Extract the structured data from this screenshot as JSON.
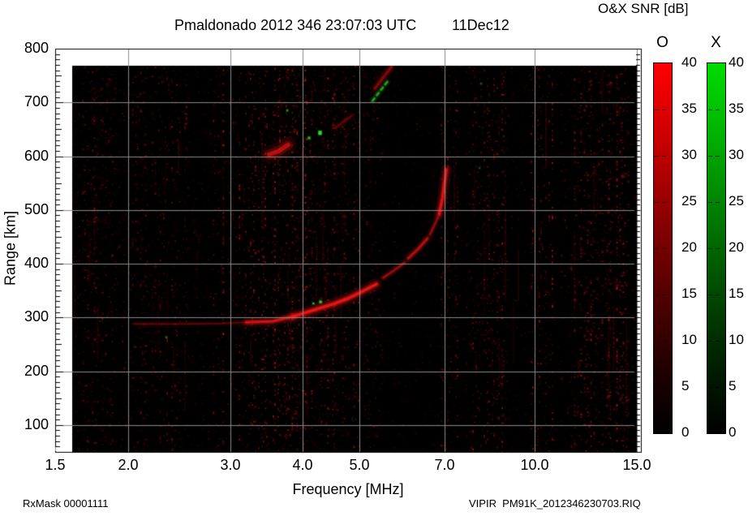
{
  "header": {
    "title": "Pmaldonado 2012 346 23:07:03 UTC",
    "date": "11Dec12"
  },
  "colorbar_panel": {
    "title": "O&X SNR [dB]",
    "bars": [
      {
        "label": "O",
        "min": 0,
        "max": 40,
        "tick_step": 5,
        "top_color": "#fe0000"
      },
      {
        "label": "X",
        "min": 0,
        "max": 40,
        "tick_step": 5,
        "top_color": "#00dc00"
      }
    ],
    "tick_labels": [
      "40",
      "35",
      "30",
      "25",
      "20",
      "15",
      "10",
      "5",
      "0"
    ]
  },
  "footer": {
    "left": "RxMask 00001111",
    "right": "VIPIR  PM91K_2012346230703.RIQ"
  },
  "chart_data": {
    "type": "heatmap",
    "title": "Pmaldonado 2012 346 23:07:03 UTC  11Dec12",
    "xlabel": "Frequency [MHz]",
    "ylabel": "Range [km]",
    "x_scale": "log",
    "xlim": [
      1.5,
      15.0
    ],
    "ylim": [
      50,
      800
    ],
    "x_ticks": [
      1.5,
      2.0,
      3.0,
      4.0,
      5.0,
      7.0,
      10.0,
      15.0
    ],
    "x_tick_labels": [
      "1.5",
      "2.0",
      "3.0",
      "4.0",
      "5.0",
      "7.0",
      "10.0",
      "15.0"
    ],
    "x_gridlines": [
      2,
      3,
      4,
      5,
      7,
      10,
      15
    ],
    "y_ticks": [
      100,
      200,
      300,
      400,
      500,
      600,
      700,
      800
    ],
    "y_gridlines": [
      100,
      200,
      300,
      400,
      500,
      600,
      700
    ],
    "y_minor_step_km": 10,
    "grid_color": "#8a8a8a",
    "background_color": "#000000",
    "noise_color": "#e11612",
    "snr_range_db": [
      0,
      40
    ],
    "data_extent": {
      "f_min_mhz": 1.6,
      "f_max_mhz": 15.0,
      "km_min": 50,
      "km_max": 768
    },
    "o_trace_segments": [
      {
        "alpha": 0.3,
        "width": 3.0,
        "points_f_km": [
          [
            2.05,
            288
          ],
          [
            2.5,
            288
          ],
          [
            2.9,
            289
          ],
          [
            3.2,
            291
          ]
        ]
      },
      {
        "alpha": 0.85,
        "width": 5.0,
        "points_f_km": [
          [
            3.2,
            291
          ],
          [
            3.55,
            293
          ],
          [
            3.85,
            302
          ]
        ]
      },
      {
        "alpha": 1.0,
        "width": 6.0,
        "points_f_km": [
          [
            3.85,
            302
          ],
          [
            4.15,
            313
          ],
          [
            4.45,
            323
          ],
          [
            4.75,
            334
          ],
          [
            5.05,
            348
          ],
          [
            5.35,
            362
          ]
        ]
      },
      {
        "alpha": 0.55,
        "width": 4.0,
        "points_f_km": [
          [
            5.5,
            374
          ],
          [
            5.75,
            388
          ],
          [
            5.98,
            402
          ]
        ]
      },
      {
        "alpha": 0.7,
        "width": 4.5,
        "points_f_km": [
          [
            6.07,
            410
          ],
          [
            6.32,
            428
          ],
          [
            6.55,
            447
          ]
        ]
      },
      {
        "alpha": 0.5,
        "width": 4.0,
        "points_f_km": [
          [
            6.62,
            455
          ],
          [
            6.82,
            485
          ]
        ]
      },
      {
        "alpha": 0.95,
        "width": 5.5,
        "points_f_km": [
          [
            6.86,
            492
          ],
          [
            6.95,
            522
          ],
          [
            7.02,
            556
          ],
          [
            7.06,
            575
          ]
        ]
      }
    ],
    "echo_streaks": [
      {
        "alpha": 0.7,
        "width": 9.0,
        "points_f_km": [
          [
            3.5,
            603
          ],
          [
            3.64,
            610
          ],
          [
            3.77,
            621
          ]
        ]
      },
      {
        "alpha": 0.3,
        "width": 4.0,
        "points_f_km": [
          [
            4.54,
            652
          ],
          [
            4.85,
            675
          ]
        ]
      },
      {
        "alpha": 0.45,
        "width": 5.0,
        "points_f_km": [
          [
            5.32,
            726
          ],
          [
            5.68,
            766
          ]
        ]
      }
    ],
    "x_trace_dashed_green": {
      "alpha": 0.9,
      "width": 3.0,
      "points_f_km": [
        [
          5.27,
          703
        ],
        [
          5.62,
          742
        ]
      ]
    },
    "green_specks_f_km_size_alpha": [
      [
        4.28,
        644,
        4,
        1.0
      ],
      [
        4.1,
        634,
        3,
        0.8
      ],
      [
        3.76,
        685,
        2,
        0.7
      ],
      [
        4.17,
        326,
        2,
        0.9
      ],
      [
        4.29,
        329,
        3,
        0.95
      ],
      [
        2.33,
        263,
        2,
        0.5
      ],
      [
        8.1,
        735,
        2,
        0.4
      ],
      [
        8.05,
        578,
        2,
        0.35
      ]
    ],
    "rfi_noise_bands_f0_f1_density": [
      [
        1.6,
        1.67,
        0.3
      ],
      [
        1.67,
        1.88,
        0.48
      ],
      [
        1.88,
        2.02,
        0.3
      ],
      [
        2.02,
        2.3,
        0.48
      ],
      [
        2.3,
        2.56,
        0.42
      ],
      [
        2.56,
        2.8,
        0.26
      ],
      [
        2.8,
        3.14,
        0.45
      ],
      [
        3.14,
        3.8,
        0.55
      ],
      [
        3.8,
        4.52,
        0.58
      ],
      [
        4.52,
        5.22,
        0.5
      ],
      [
        5.22,
        5.48,
        0.4
      ],
      [
        5.48,
        6.9,
        0.18
      ],
      [
        6.9,
        7.38,
        0.45
      ],
      [
        7.38,
        7.72,
        0.26
      ],
      [
        7.72,
        8.95,
        0.55
      ],
      [
        8.95,
        9.85,
        0.2
      ],
      [
        9.85,
        10.9,
        0.5
      ],
      [
        10.9,
        11.7,
        0.26
      ],
      [
        11.7,
        14.55,
        0.62
      ],
      [
        14.55,
        15.05,
        0.3
      ]
    ]
  }
}
